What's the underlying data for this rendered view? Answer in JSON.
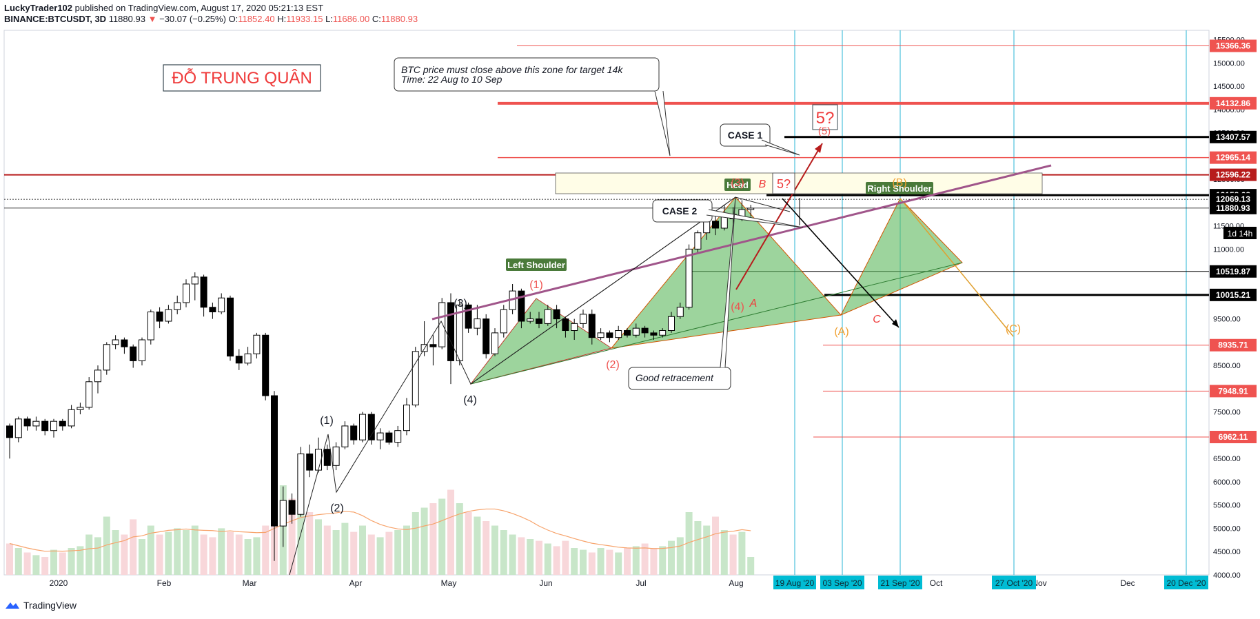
{
  "header": {
    "line1_user": "LuckyTrader102",
    "line1_rest": " published on TradingView.com, August 17, 2020 05:21:13 EST",
    "symbol": "BINANCE:BTCUSDT, 3D",
    "price": "11880.93",
    "change": "−30.07 (−0.25%)",
    "o_label": "O:",
    "o_val": "11852.40",
    "h_label": "H:",
    "h_val": "11933.15",
    "l_label": "L:",
    "l_val": "11686.00",
    "c_label": "C:",
    "c_val": "11880.93",
    "colors": {
      "down": "#ef5350",
      "text": "#131722"
    }
  },
  "author_tag": "ĐỖ TRUNG QUÂN",
  "annotations": {
    "note_top_line1": "BTC price must close above this zone for target 14k",
    "note_top_line2": "Time: 22 Aug to 10 Sep",
    "case1": "CASE 1",
    "case2": "CASE 2",
    "good_retracement": "Good retracement",
    "five_q_box": "5?",
    "five_q": "5?",
    "five_paren": "(5)",
    "head": "Head",
    "left_shoulder": "Left Shoulder",
    "right_shoulder": "Right Shoulder",
    "wave_B": "B",
    "wave_A": "A",
    "wave_C": "C",
    "wave_1": "(1)",
    "wave_2": "(2)",
    "wave_3": "(3)",
    "wave_4": "(4)",
    "wave_2r": "(2)",
    "wave_4r": "(4)",
    "wave_1o": "(1)",
    "wave_3o": "(3)",
    "wave_A_o": "(A)",
    "wave_C_o": "(C)",
    "wave_B_o": "(B)"
  },
  "chart_data": {
    "type": "candlestick",
    "timeframe": "3D",
    "ylim": [
      4000,
      15700
    ],
    "y_ticks": [
      4000,
      4500,
      5000,
      5500,
      6000,
      6500,
      7000,
      7500,
      8000,
      8500,
      9000,
      9500,
      10000,
      10500,
      11000,
      11500,
      12000,
      12500,
      13000,
      13500,
      14000,
      14500,
      15000,
      15500
    ],
    "x_tick_labels": [
      "2020",
      "Feb",
      "Mar",
      "Apr",
      "May",
      "Jun",
      "Jul",
      "Aug",
      "Oct",
      "Nov",
      "Dec"
    ],
    "date_badges": [
      "19 Aug '20",
      "03 Sep '20",
      "21 Sep '20",
      "27 Oct '20",
      "20 Dec '20"
    ],
    "price_badges": [
      {
        "label": "15366.36",
        "value": 15366.36,
        "color": "#ef5350"
      },
      {
        "label": "14132.86",
        "value": 14132.86,
        "color": "#ef5350"
      },
      {
        "label": "13407.57",
        "value": 13407.57,
        "color": "#000000"
      },
      {
        "label": "12965.14",
        "value": 12965.14,
        "color": "#ef5350"
      },
      {
        "label": "12596.22",
        "value": 12596.22,
        "color": "#b71c1c"
      },
      {
        "label": "12158.68",
        "value": 12158.68,
        "color": "#000000"
      },
      {
        "label": "12069.13",
        "value": 12069.13,
        "color": "#000000"
      },
      {
        "label": "11880.93",
        "value": 11880.93,
        "color": "#000000"
      },
      {
        "label": "10519.87",
        "value": 10519.87,
        "color": "#000000"
      },
      {
        "label": "10015.21",
        "value": 10015.21,
        "color": "#000000"
      },
      {
        "label": "8935.71",
        "value": 8935.71,
        "color": "#ef5350"
      },
      {
        "label": "7948.91",
        "value": 7948.91,
        "color": "#ef5350"
      },
      {
        "label": "6962.11",
        "value": 6962.11,
        "color": "#ef5350"
      }
    ],
    "countdown": "1d 14h",
    "candles": [
      [
        7200,
        6950,
        7250,
        6500
      ],
      [
        6950,
        7350,
        7400,
        6850
      ],
      [
        7350,
        7200,
        7400,
        7100
      ],
      [
        7200,
        7300,
        7400,
        7100
      ],
      [
        7300,
        7100,
        7350,
        7000
      ],
      [
        7100,
        7300,
        7350,
        6950
      ],
      [
        7300,
        7200,
        7350,
        7100
      ],
      [
        7200,
        7550,
        7650,
        7150
      ],
      [
        7550,
        7600,
        7700,
        7450
      ],
      [
        7600,
        8150,
        8250,
        7550
      ],
      [
        8150,
        8400,
        8500,
        7900
      ],
      [
        8400,
        8950,
        9000,
        8300
      ],
      [
        8950,
        9050,
        9150,
        8850
      ],
      [
        9050,
        8900,
        9100,
        8750
      ],
      [
        8900,
        8600,
        8950,
        8450
      ],
      [
        8600,
        9050,
        9100,
        8500
      ],
      [
        9050,
        9650,
        9700,
        8950
      ],
      [
        9650,
        9450,
        9750,
        9300
      ],
      [
        9450,
        9700,
        9800,
        9400
      ],
      [
        9700,
        9850,
        10000,
        9600
      ],
      [
        9850,
        10250,
        10350,
        9750
      ],
      [
        10250,
        10400,
        10500,
        9900
      ],
      [
        10400,
        9750,
        10450,
        9550
      ],
      [
        9750,
        9650,
        9850,
        9500
      ],
      [
        9650,
        9950,
        10050,
        9600
      ],
      [
        9950,
        8700,
        10000,
        8600
      ],
      [
        8700,
        8550,
        8850,
        8400
      ],
      [
        8550,
        8750,
        8900,
        8500
      ],
      [
        8750,
        9150,
        9200,
        8650
      ],
      [
        9150,
        7850,
        9200,
        7750
      ],
      [
        7850,
        5050,
        7950,
        4300
      ],
      [
        5050,
        5600,
        5900,
        4600
      ],
      [
        5600,
        5300,
        5750,
        5100
      ],
      [
        5300,
        6600,
        6750,
        5250
      ],
      [
        6600,
        6250,
        6800,
        6100
      ],
      [
        6250,
        6700,
        6950,
        6200
      ],
      [
        6700,
        6350,
        6800,
        6250
      ],
      [
        6350,
        6750,
        6850,
        6250
      ],
      [
        6750,
        7200,
        7300,
        6700
      ],
      [
        7200,
        6900,
        7250,
        6800
      ],
      [
        6900,
        7450,
        7500,
        6850
      ],
      [
        7450,
        6900,
        7500,
        6800
      ],
      [
        6900,
        7050,
        7150,
        6700
      ],
      [
        7050,
        6850,
        7100,
        6800
      ],
      [
        6850,
        7100,
        7200,
        6750
      ],
      [
        7100,
        7650,
        7800,
        7000
      ],
      [
        7650,
        8800,
        8900,
        7600
      ],
      [
        8800,
        8950,
        9450,
        8700
      ],
      [
        8950,
        8900,
        9150,
        8500
      ],
      [
        8900,
        9850,
        9950,
        8850
      ],
      [
        9850,
        8600,
        10050,
        8100
      ],
      [
        8600,
        9800,
        9900,
        8500
      ],
      [
        9800,
        9300,
        9850,
        9200
      ],
      [
        9300,
        9500,
        9800,
        9150
      ],
      [
        9500,
        8750,
        9600,
        8650
      ],
      [
        8750,
        9200,
        9300,
        8700
      ],
      [
        9200,
        9700,
        9800,
        9100
      ],
      [
        9700,
        10100,
        10250,
        9600
      ],
      [
        10100,
        9450,
        10150,
        9300
      ],
      [
        9450,
        9500,
        9650,
        9400
      ],
      [
        9500,
        9400,
        9650,
        9300
      ],
      [
        9400,
        9700,
        9800,
        9350
      ],
      [
        9700,
        9500,
        9800,
        9300
      ],
      [
        9500,
        9250,
        9550,
        9100
      ],
      [
        9250,
        9400,
        9500,
        9050
      ],
      [
        9400,
        9600,
        9700,
        9300
      ],
      [
        9600,
        9100,
        9700,
        8950
      ],
      [
        9100,
        9200,
        9300,
        9050
      ],
      [
        9200,
        9100,
        9250,
        9000
      ],
      [
        9100,
        9250,
        9350,
        9050
      ],
      [
        9250,
        9150,
        9300,
        9100
      ],
      [
        9150,
        9300,
        9400,
        9100
      ],
      [
        9300,
        9200,
        9350,
        9100
      ],
      [
        9200,
        9150,
        9250,
        9050
      ],
      [
        9150,
        9250,
        9300,
        9100
      ],
      [
        9250,
        9550,
        9650,
        9200
      ],
      [
        9550,
        9750,
        9850,
        9500
      ],
      [
        9750,
        11000,
        11100,
        9700
      ],
      [
        11000,
        11350,
        11400,
        10900
      ],
      [
        11350,
        11600,
        11800,
        11200
      ],
      [
        11600,
        11450,
        11800,
        11300
      ],
      [
        11450,
        11750,
        11950,
        11400
      ],
      [
        11750,
        11650,
        11900,
        11500
      ],
      [
        11650,
        11850,
        12050,
        11600
      ],
      [
        11850,
        11880,
        11950,
        11700
      ]
    ],
    "volumes": [
      0.35,
      0.3,
      0.25,
      0.22,
      0.2,
      0.28,
      0.25,
      0.3,
      0.32,
      0.45,
      0.42,
      0.65,
      0.5,
      0.45,
      0.62,
      0.4,
      0.55,
      0.45,
      0.48,
      0.52,
      0.5,
      0.55,
      0.45,
      0.42,
      0.52,
      0.48,
      0.45,
      0.4,
      0.42,
      0.55,
      0.95,
      1.0,
      0.85,
      0.78,
      0.7,
      0.62,
      0.55,
      0.5,
      0.58,
      0.48,
      0.55,
      0.45,
      0.42,
      0.48,
      0.5,
      0.55,
      0.7,
      0.75,
      0.8,
      0.85,
      0.95,
      0.8,
      0.7,
      0.65,
      0.6,
      0.55,
      0.5,
      0.45,
      0.42,
      0.4,
      0.38,
      0.35,
      0.32,
      0.38,
      0.3,
      0.28,
      0.25,
      0.3,
      0.28,
      0.25,
      0.3,
      0.32,
      0.35,
      0.3,
      0.32,
      0.38,
      0.42,
      0.7,
      0.6,
      0.55,
      0.65,
      0.5,
      0.45,
      0.48,
      0.2
    ]
  }
}
